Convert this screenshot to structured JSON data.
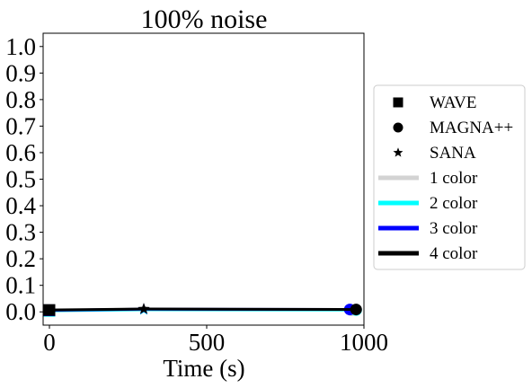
{
  "chart_data": {
    "type": "line",
    "title": "100% noise",
    "xlabel": "Time (s)",
    "ylabel": "",
    "xlim": [
      -20,
      1000
    ],
    "ylim": [
      -0.05,
      1.05
    ],
    "xticks": [
      0,
      500,
      1000
    ],
    "yticks": [
      0.0,
      0.1,
      0.2,
      0.3,
      0.4,
      0.5,
      0.6,
      0.7,
      0.8,
      0.9,
      1.0
    ],
    "grid": false,
    "legend_position": "right, outside plot",
    "markers": [
      {
        "name": "WAVE",
        "symbol": "square"
      },
      {
        "name": "MAGNA++",
        "symbol": "circle"
      },
      {
        "name": "SANA",
        "symbol": "star"
      }
    ],
    "color_legend": [
      {
        "name": "1 color",
        "color": "#d3d3d3"
      },
      {
        "name": "2 color",
        "color": "#00ffff"
      },
      {
        "name": "3 color",
        "color": "#0000ff"
      },
      {
        "name": "4 color",
        "color": "#000000"
      }
    ],
    "series": [
      {
        "name": "1 color",
        "color": "#d3d3d3",
        "points": [
          {
            "x": 0,
            "y": 0.003,
            "m": "square"
          },
          {
            "x": 300,
            "y": 0.007,
            "m": "star"
          },
          {
            "x": 960,
            "y": 0.006,
            "m": "circle"
          }
        ]
      },
      {
        "name": "2 color",
        "color": "#00ffff",
        "points": [
          {
            "x": 0,
            "y": 0.004,
            "m": "square"
          },
          {
            "x": 300,
            "y": 0.008,
            "m": "star"
          },
          {
            "x": 975,
            "y": 0.007,
            "m": "circle"
          }
        ]
      },
      {
        "name": "3 color",
        "color": "#0000ff",
        "points": [
          {
            "x": 0,
            "y": 0.006,
            "m": "square"
          },
          {
            "x": 300,
            "y": 0.01,
            "m": "star"
          },
          {
            "x": 955,
            "y": 0.009,
            "m": "circle"
          }
        ]
      },
      {
        "name": "4 color",
        "color": "#000000",
        "points": [
          {
            "x": 0,
            "y": 0.007,
            "m": "square"
          },
          {
            "x": 300,
            "y": 0.011,
            "m": "star"
          },
          {
            "x": 975,
            "y": 0.009,
            "m": "circle"
          }
        ]
      }
    ]
  }
}
